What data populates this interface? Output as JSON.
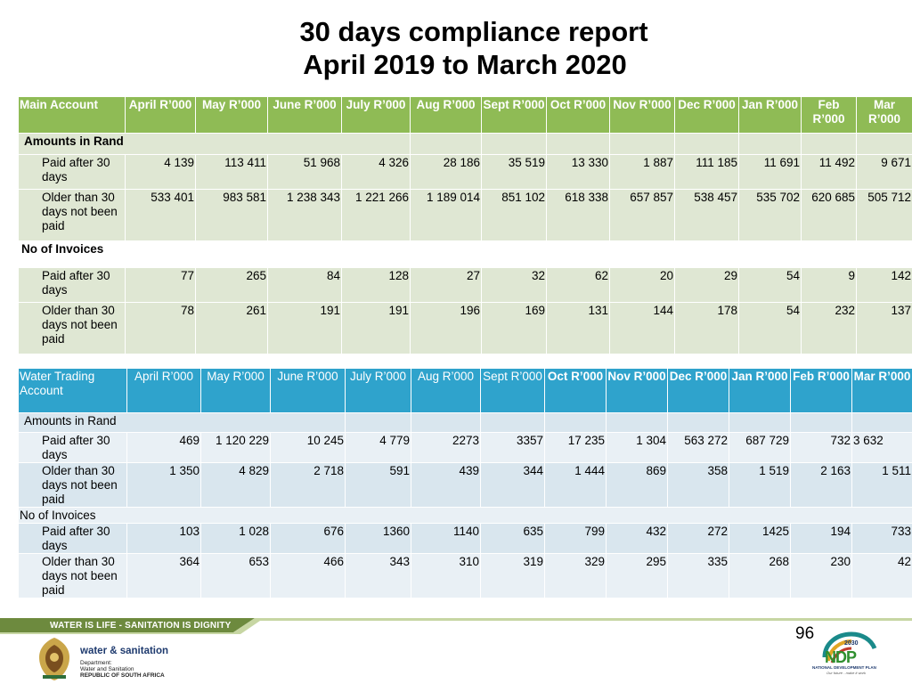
{
  "title_line1": "30 days compliance report",
  "title_line2": "April 2019 to March 2020",
  "main_table": {
    "headers": [
      "Main Account",
      "April R’000",
      "May R’000",
      "June R’000",
      "July R’000",
      "Aug R’000",
      "Sept R’000",
      "Oct R’000",
      "Nov R’000",
      "Dec R’000",
      "Jan R’000",
      "Feb R’000",
      "Mar R’000"
    ],
    "section_amounts": "Amounts in Rand",
    "amount_rows": [
      {
        "label": "Paid after 30 days",
        "values": [
          "4 139",
          "113 411",
          "51 968",
          "4 326",
          "28 186",
          "35 519",
          "13 330",
          "1 887",
          "111 185",
          "11 691",
          "11 492",
          "9 671"
        ]
      },
      {
        "label": "Older than 30 days not been paid",
        "values": [
          "533 401",
          "983 581",
          "1 238 343",
          "1 221 266",
          "1 189 014",
          "851 102",
          "618 338",
          "657 857",
          "538 457",
          "535 702",
          "620 685",
          "505 712"
        ]
      }
    ],
    "section_invoices": "No of Invoices",
    "invoice_rows": [
      {
        "label": "Paid after 30 days",
        "values": [
          "77",
          "265",
          "84",
          "128",
          "27",
          "32",
          "62",
          "20",
          "29",
          "54",
          "9",
          "142"
        ]
      },
      {
        "label": "Older than 30 days not been paid",
        "values": [
          "78",
          "261",
          "191",
          "191",
          "196",
          "169",
          "131",
          "144",
          "178",
          "54",
          "232",
          "137"
        ]
      }
    ]
  },
  "water_table": {
    "headers": [
      "Water Trading Account",
      "April R’000",
      "May R’000",
      "June R’000",
      "July R’000",
      "Aug R’000",
      "Sept R’000",
      "Oct R’000",
      "Nov R’000",
      "Dec R’000",
      "Jan R’000",
      "Feb R’000",
      "Mar R’000"
    ],
    "section_amounts": "Amounts in Rand",
    "amount_rows": [
      {
        "label": "Paid after 30 days",
        "values": [
          "469",
          "1 120 229",
          "10 245",
          "4 779",
          "2273",
          "3357",
          "17 235",
          "1 304",
          "563 272",
          "687 729",
          "732",
          "3 632"
        ]
      },
      {
        "label": "Older than 30 days not been paid",
        "values": [
          "1 350",
          "4 829",
          "2 718",
          "591",
          "439",
          "344",
          "1 444",
          "869",
          "358",
          "1 519",
          "2 163",
          "1 511"
        ]
      }
    ],
    "section_invoices": "No of Invoices",
    "invoice_rows": [
      {
        "label": "Paid after 30 days",
        "values": [
          "103",
          "1 028",
          "676",
          "1360",
          "1140",
          "635",
          "799",
          "432",
          "272",
          "1425",
          "194",
          "733"
        ]
      },
      {
        "label": "Older than 30 days not been paid",
        "values": [
          "364",
          "653",
          "466",
          "343",
          "310",
          "319",
          "329",
          "295",
          "335",
          "268",
          "230",
          "42"
        ]
      }
    ]
  },
  "footer": {
    "slogan": "WATER IS LIFE - SANITATION IS DIGNITY",
    "page_number": "96",
    "dept_name": "water & sanitation",
    "dept_line1": "Department:",
    "dept_line2": "Water and Sanitation",
    "dept_line3": "REPUBLIC OF SOUTH AFRICA",
    "ndp_year": "2030",
    "ndp_mark": "NDP",
    "ndp_name": "NATIONAL DEVELOPMENT PLAN",
    "ndp_tagline": "Our future - make it work"
  },
  "colors": {
    "main_header": "#8fbb55",
    "main_row": "#dfe7d3",
    "water_header": "#2fa3cc",
    "water_row": "#d9e6ee",
    "footer_band": "#6d8a3e"
  }
}
